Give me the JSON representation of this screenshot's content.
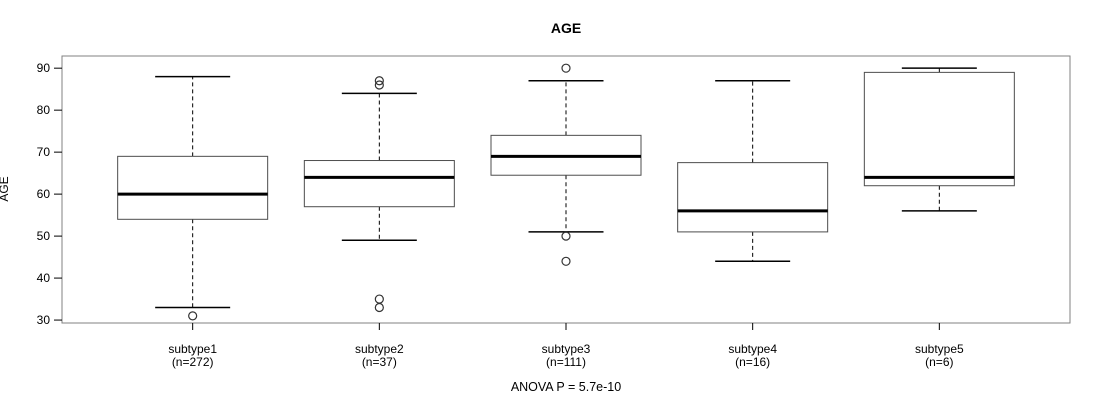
{
  "chart_data": {
    "type": "boxplot",
    "title": "AGE",
    "ylabel": "AGE",
    "xlabel": "",
    "annotation": "ANOVA P = 5.7e-10",
    "y_ticks": [
      30,
      40,
      50,
      60,
      70,
      80,
      90
    ],
    "ylim": [
      29.3,
      92.9
    ],
    "grid": false,
    "legend": "none",
    "groups": [
      {
        "label": "subtype1",
        "n_label": "(n=272)",
        "n": 272,
        "whisker_low": 33,
        "q1": 54,
        "median": 60,
        "q3": 69,
        "whisker_high": 88,
        "outliers": [
          31
        ]
      },
      {
        "label": "subtype2",
        "n_label": "(n=37)",
        "n": 37,
        "whisker_low": 49,
        "q1": 57,
        "median": 64,
        "q3": 68,
        "whisker_high": 84,
        "outliers": [
          33,
          35,
          86,
          87
        ]
      },
      {
        "label": "subtype3",
        "n_label": "(n=111)",
        "n": 111,
        "whisker_low": 51,
        "q1": 64.5,
        "median": 69,
        "q3": 74,
        "whisker_high": 87,
        "outliers": [
          44,
          50,
          90
        ]
      },
      {
        "label": "subtype4",
        "n_label": "(n=16)",
        "n": 16,
        "whisker_low": 44,
        "q1": 51,
        "median": 56,
        "q3": 67.5,
        "whisker_high": 87,
        "outliers": []
      },
      {
        "label": "subtype5",
        "n_label": "(n=6)",
        "n": 6,
        "whisker_low": 56,
        "q1": 62,
        "median": 64,
        "q3": 89,
        "whisker_high": 90,
        "outliers": []
      }
    ],
    "colors": {
      "background": "#ffffff",
      "frame": "#808080",
      "box_border": "#4d4d4d",
      "box_fill": "#ffffff",
      "median": "#000000",
      "whisker": "#000000",
      "outlier_stroke": "#333333",
      "text": "#000000"
    }
  }
}
